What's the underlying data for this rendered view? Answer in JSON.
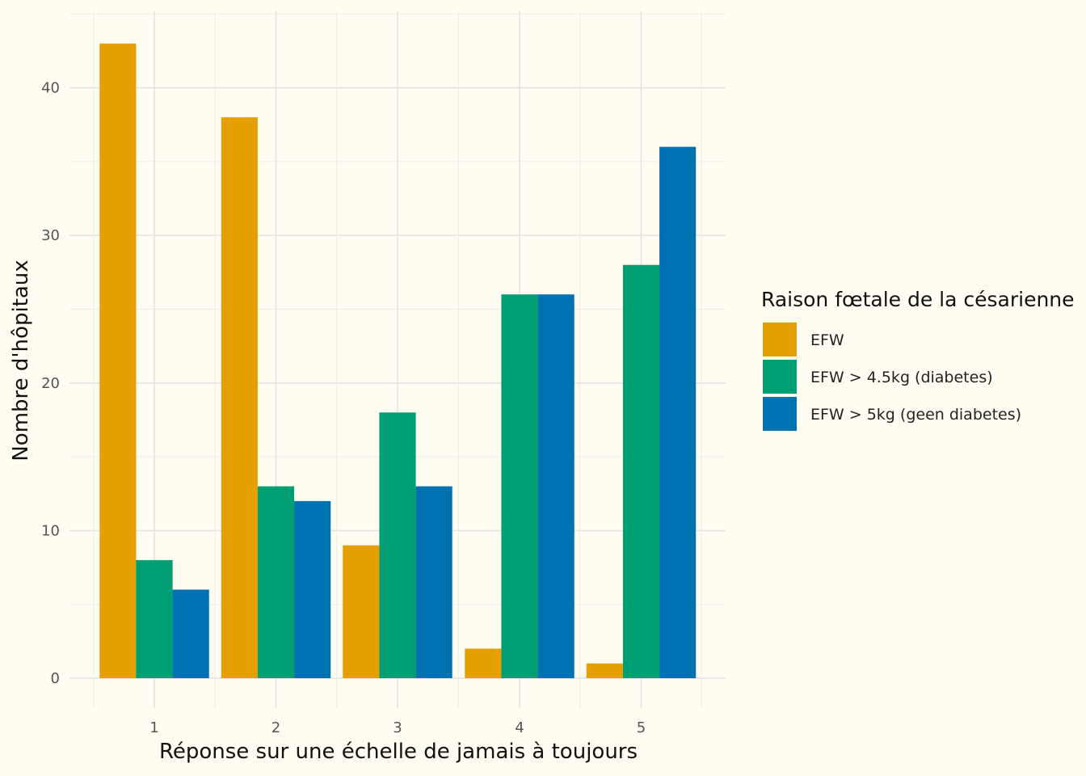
{
  "chart_data": {
    "type": "bar",
    "categories": [
      "1",
      "2",
      "3",
      "4",
      "5"
    ],
    "series": [
      {
        "name": "EFW",
        "color": "#E69F00",
        "values": [
          43,
          38,
          9,
          2,
          1
        ]
      },
      {
        "name": "EFW > 4.5kg (diabetes)",
        "color": "#009E73",
        "values": [
          8,
          13,
          18,
          26,
          28
        ]
      },
      {
        "name": "EFW > 5kg (geen diabetes)",
        "color": "#0072B2",
        "values": [
          6,
          12,
          13,
          26,
          36
        ]
      }
    ],
    "xlabel": "Réponse sur une échelle de jamais à toujours",
    "ylabel": "Nombre d'hôpitaux",
    "ylim": [
      0,
      45
    ],
    "yticks": [
      0,
      10,
      20,
      30,
      40
    ],
    "legend_title": "Raison fœtale de la césarienne",
    "legend_position": "right",
    "grid": true
  }
}
